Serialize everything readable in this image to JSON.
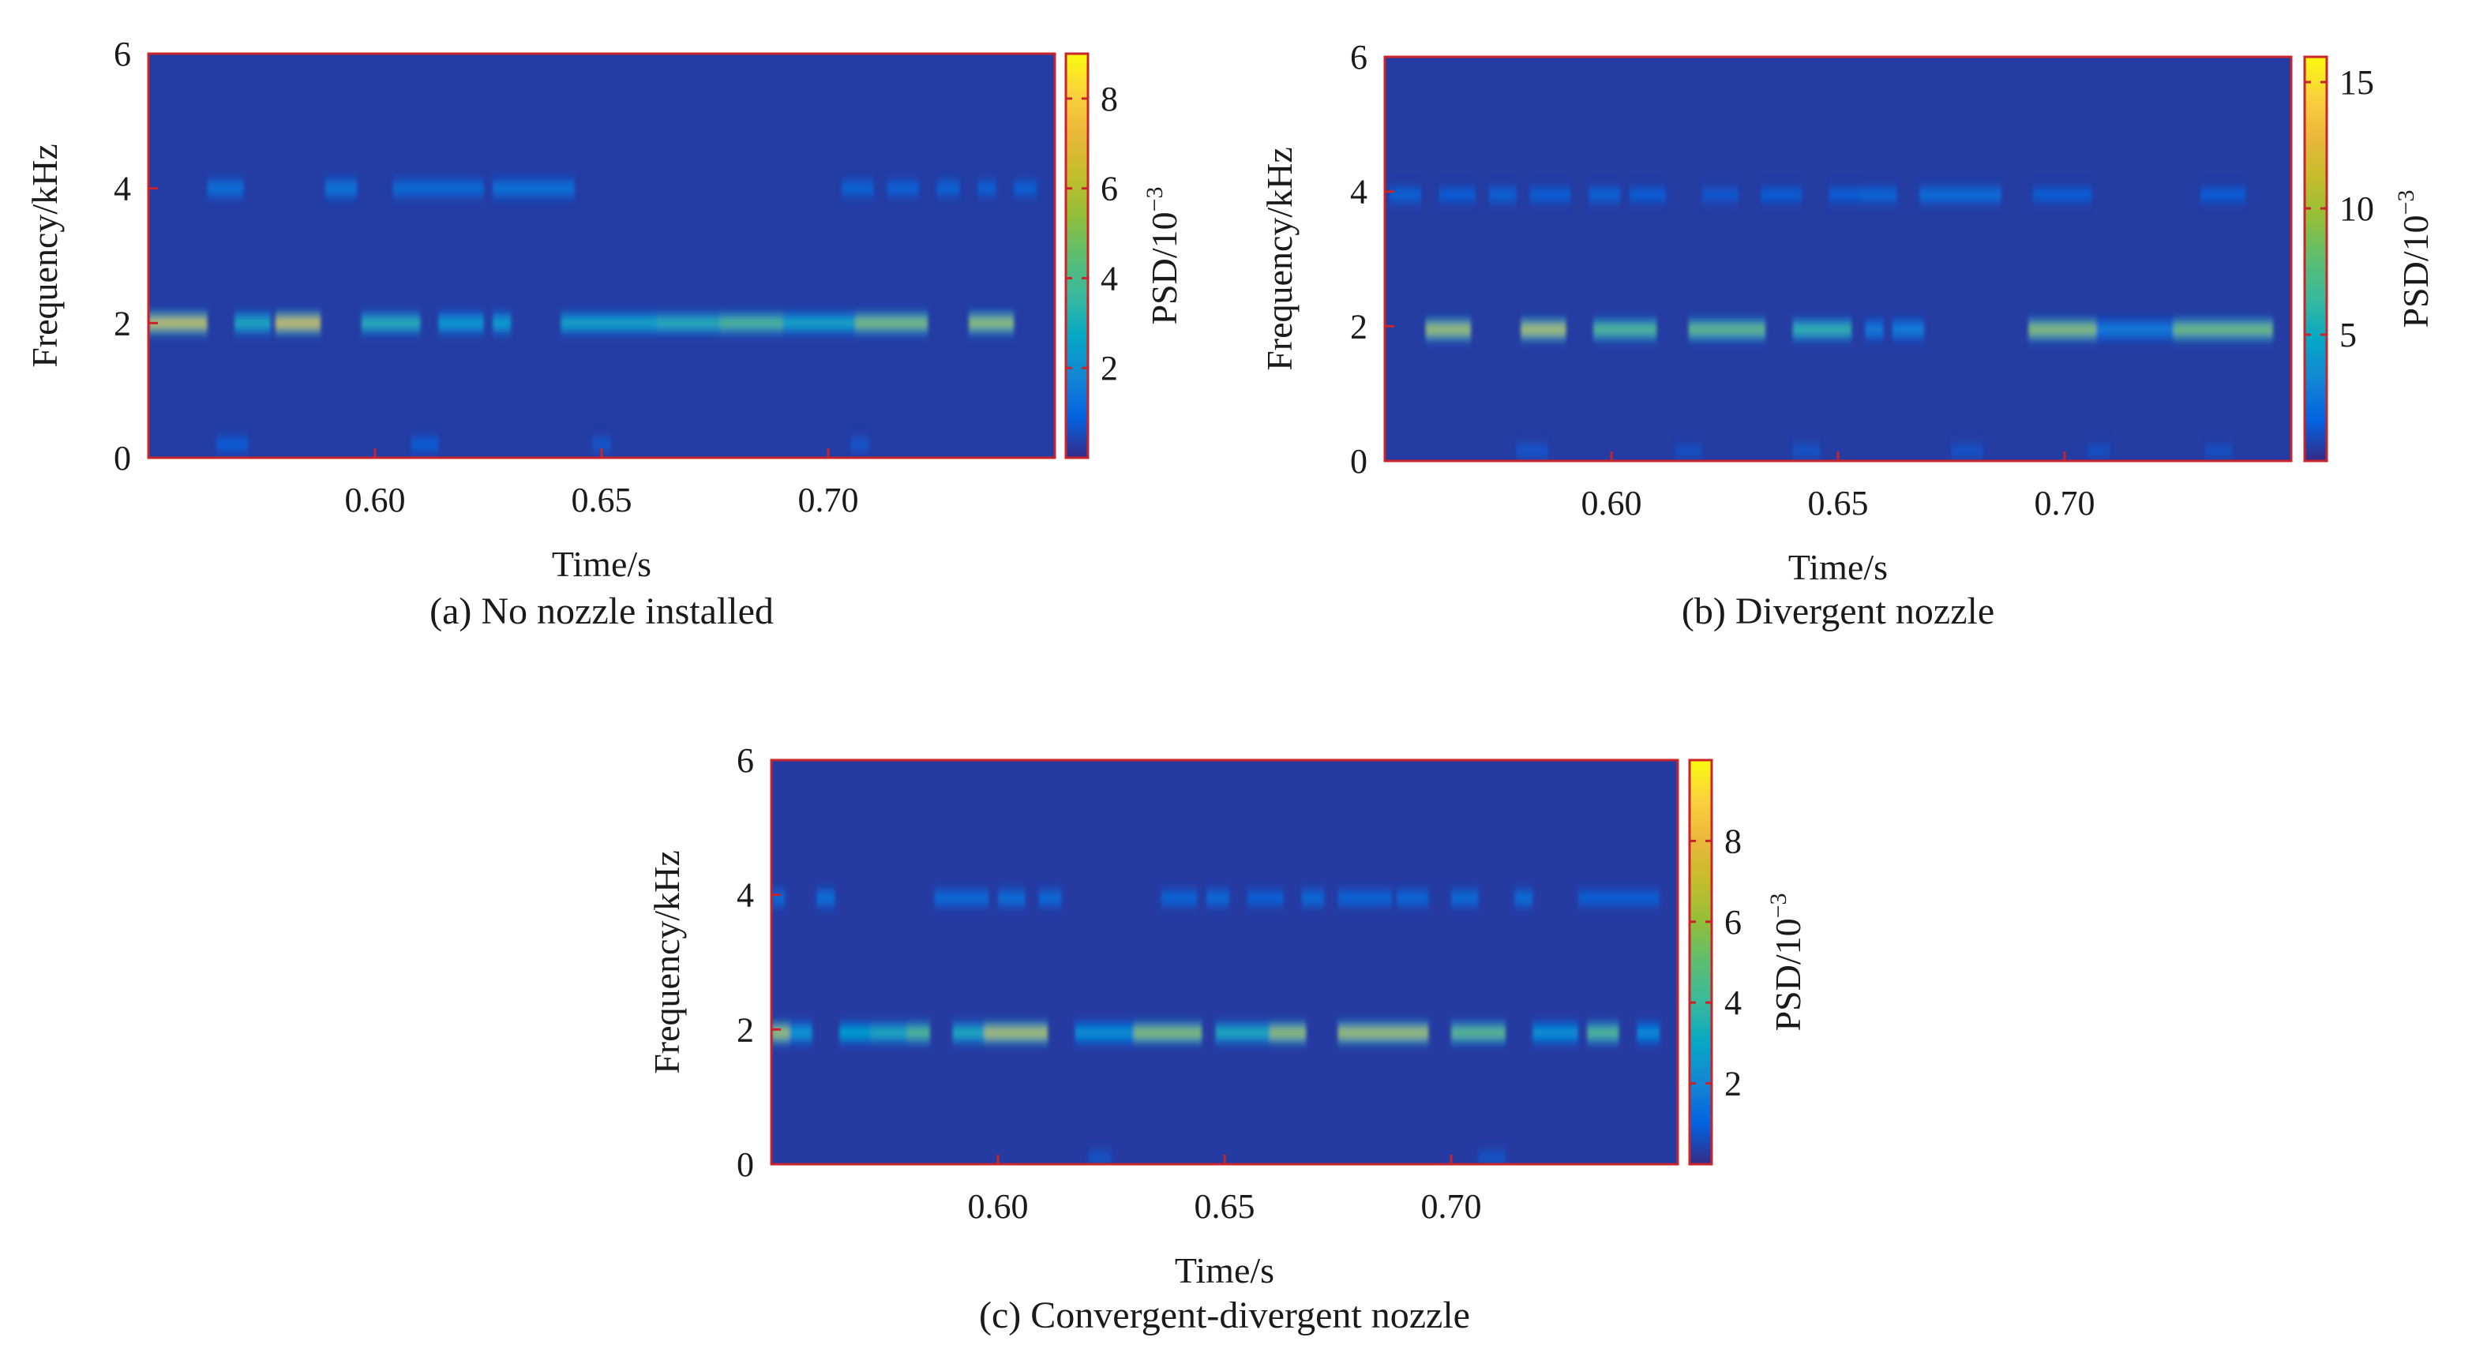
{
  "chart_data": [
    {
      "type": "heatmap",
      "caption": "(a) No nozzle installed",
      "xlabel": "Time/s",
      "ylabel": "Frequency/kHz",
      "colorbar_label": "PSD/10",
      "colorbar_exponent": "−3",
      "xlim": [
        0.55,
        0.75
      ],
      "ylim": [
        0,
        6
      ],
      "xticks": [
        0.6,
        0.65,
        0.7
      ],
      "xtick_labels": [
        "0.60",
        "0.65",
        "0.70"
      ],
      "yticks": [
        0,
        2,
        4,
        6
      ],
      "ytick_labels": [
        "0",
        "2",
        "4",
        "6"
      ],
      "colorbar_range": [
        0,
        9
      ],
      "colorbar_ticks": [
        2,
        4,
        6,
        8
      ],
      "colorbar_tick_labels": [
        "2",
        "4",
        "6",
        "8"
      ],
      "background_value": 0.3,
      "bands": [
        {
          "freq": 2.0,
          "segments": [
            [
              0.55,
              0.563,
              6.5
            ],
            [
              0.569,
              0.577,
              3.2
            ],
            [
              0.578,
              0.588,
              6.8
            ],
            [
              0.597,
              0.61,
              3.4
            ],
            [
              0.614,
              0.624,
              2.6
            ],
            [
              0.626,
              0.63,
              2.8
            ],
            [
              0.641,
              0.662,
              3.0
            ],
            [
              0.662,
              0.676,
              3.4
            ],
            [
              0.676,
              0.69,
              4.4
            ],
            [
              0.69,
              0.706,
              3.0
            ],
            [
              0.706,
              0.722,
              5.2
            ],
            [
              0.731,
              0.741,
              5.6
            ]
          ]
        },
        {
          "freq": 4.0,
          "segments": [
            [
              0.563,
              0.571,
              1.4
            ],
            [
              0.589,
              0.596,
              1.6
            ],
            [
              0.604,
              0.624,
              1.3
            ],
            [
              0.626,
              0.644,
              1.5
            ],
            [
              0.703,
              0.71,
              1.1
            ],
            [
              0.713,
              0.72,
              1.0
            ],
            [
              0.724,
              0.729,
              1.1
            ],
            [
              0.733,
              0.737,
              1.0
            ],
            [
              0.741,
              0.746,
              1.0
            ]
          ]
        },
        {
          "freq": 0.2,
          "segments": [
            [
              0.565,
              0.572,
              0.9
            ],
            [
              0.608,
              0.614,
              0.9
            ],
            [
              0.648,
              0.652,
              0.8
            ],
            [
              0.705,
              0.709,
              0.8
            ]
          ]
        }
      ]
    },
    {
      "type": "heatmap",
      "caption": "(b) Divergent nozzle",
      "xlabel": "Time/s",
      "ylabel": "Frequency/kHz",
      "colorbar_label": "PSD/10",
      "colorbar_exponent": "−3",
      "xlim": [
        0.55,
        0.75
      ],
      "ylim": [
        0,
        6
      ],
      "xticks": [
        0.6,
        0.65,
        0.7
      ],
      "xtick_labels": [
        "0.60",
        "0.65",
        "0.70"
      ],
      "yticks": [
        0,
        2,
        4,
        6
      ],
      "ytick_labels": [
        "0",
        "2",
        "4",
        "6"
      ],
      "colorbar_range": [
        0,
        16
      ],
      "colorbar_ticks": [
        5,
        10,
        15
      ],
      "colorbar_tick_labels": [
        "5",
        "10",
        "15"
      ],
      "background_value": 0.5,
      "bands": [
        {
          "freq": 1.95,
          "segments": [
            [
              0.559,
              0.569,
              10.5
            ],
            [
              0.58,
              0.59,
              10.8
            ],
            [
              0.596,
              0.61,
              8.0
            ],
            [
              0.617,
              0.634,
              8.5
            ],
            [
              0.64,
              0.653,
              6.5
            ],
            [
              0.656,
              0.66,
              3.0
            ],
            [
              0.662,
              0.669,
              3.2
            ],
            [
              0.692,
              0.707,
              9.8
            ],
            [
              0.707,
              0.724,
              3.0
            ],
            [
              0.724,
              0.746,
              9.0
            ]
          ]
        },
        {
          "freq": 3.95,
          "segments": [
            [
              0.551,
              0.558,
              1.8
            ],
            [
              0.562,
              0.57,
              1.6
            ],
            [
              0.573,
              0.579,
              1.8
            ],
            [
              0.582,
              0.591,
              1.7
            ],
            [
              0.595,
              0.602,
              1.8
            ],
            [
              0.604,
              0.612,
              1.6
            ],
            [
              0.62,
              0.628,
              1.5
            ],
            [
              0.633,
              0.642,
              1.6
            ],
            [
              0.648,
              0.655,
              1.6
            ],
            [
              0.655,
              0.663,
              2.0
            ],
            [
              0.668,
              0.686,
              2.4
            ],
            [
              0.693,
              0.706,
              1.7
            ],
            [
              0.73,
              0.74,
              1.6
            ]
          ]
        },
        {
          "freq": 0.15,
          "segments": [
            [
              0.579,
              0.586,
              1.4
            ],
            [
              0.614,
              0.62,
              1.2
            ],
            [
              0.64,
              0.646,
              1.3
            ],
            [
              0.675,
              0.682,
              1.3
            ],
            [
              0.705,
              0.71,
              1.2
            ],
            [
              0.731,
              0.737,
              1.2
            ]
          ]
        }
      ]
    },
    {
      "type": "heatmap",
      "caption": "(c) Convergent-divergent nozzle",
      "xlabel": "Time/s",
      "ylabel": "Frequency/kHz",
      "colorbar_label": "PSD/10",
      "colorbar_exponent": "−3",
      "xlim": [
        0.55,
        0.75
      ],
      "ylim": [
        0,
        6
      ],
      "xticks": [
        0.6,
        0.65,
        0.7
      ],
      "xtick_labels": [
        "0.60",
        "0.65",
        "0.70"
      ],
      "yticks": [
        0,
        2,
        4,
        6
      ],
      "ytick_labels": [
        "0",
        "2",
        "4",
        "6"
      ],
      "colorbar_range": [
        0,
        10
      ],
      "colorbar_ticks": [
        2,
        4,
        6,
        8
      ],
      "colorbar_tick_labels": [
        "2",
        "4",
        "6",
        "8"
      ],
      "background_value": 0.3,
      "bands": [
        {
          "freq": 1.95,
          "segments": [
            [
              0.55,
              0.554,
              6.5
            ],
            [
              0.554,
              0.559,
              2.8
            ],
            [
              0.565,
              0.572,
              3.0
            ],
            [
              0.572,
              0.58,
              3.6
            ],
            [
              0.58,
              0.585,
              5.0
            ],
            [
              0.59,
              0.597,
              3.6
            ],
            [
              0.597,
              0.611,
              6.8
            ],
            [
              0.617,
              0.63,
              2.6
            ],
            [
              0.63,
              0.645,
              6.0
            ],
            [
              0.648,
              0.66,
              3.6
            ],
            [
              0.66,
              0.668,
              6.3
            ],
            [
              0.675,
              0.695,
              6.6
            ],
            [
              0.7,
              0.712,
              5.2
            ],
            [
              0.718,
              0.728,
              2.6
            ],
            [
              0.73,
              0.737,
              5.0
            ],
            [
              0.741,
              0.746,
              2.4
            ]
          ]
        },
        {
          "freq": 3.95,
          "segments": [
            [
              0.55,
              0.553,
              1.4
            ],
            [
              0.56,
              0.564,
              1.6
            ],
            [
              0.586,
              0.598,
              1.4
            ],
            [
              0.6,
              0.606,
              1.5
            ],
            [
              0.609,
              0.614,
              1.4
            ],
            [
              0.636,
              0.644,
              1.2
            ],
            [
              0.646,
              0.651,
              1.4
            ],
            [
              0.655,
              0.663,
              1.1
            ],
            [
              0.667,
              0.672,
              1.4
            ],
            [
              0.675,
              0.687,
              1.2
            ],
            [
              0.688,
              0.695,
              1.3
            ],
            [
              0.7,
              0.706,
              1.4
            ],
            [
              0.714,
              0.718,
              1.5
            ],
            [
              0.728,
              0.746,
              1.1
            ]
          ]
        },
        {
          "freq": 0.1,
          "segments": [
            [
              0.62,
              0.625,
              0.8
            ],
            [
              0.706,
              0.712,
              0.8
            ]
          ]
        }
      ]
    }
  ]
}
